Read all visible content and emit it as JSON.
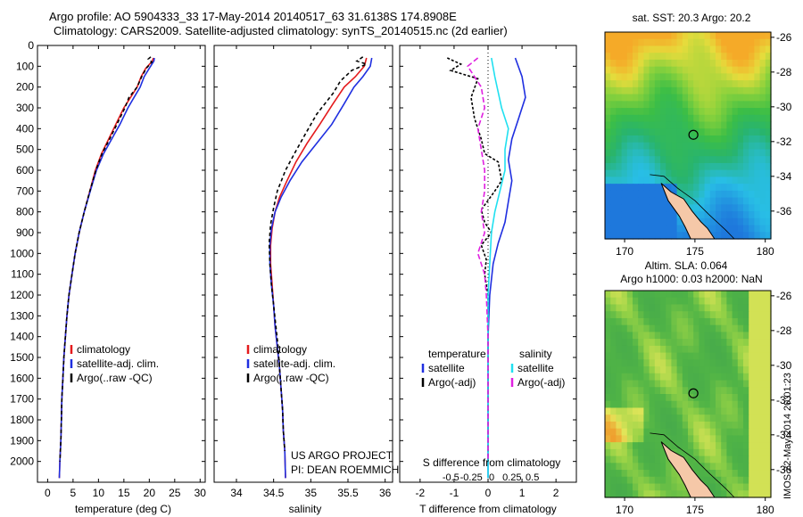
{
  "header": {
    "line1": "Argo profile: AO 5904333_33 17-May-2014 20140517_63 31.6138S 174.8908E",
    "line2": "Climatology: CARS2009. Satellite-adjusted climatology: synTS_20140515.nc (2d earlier)"
  },
  "side_label": "IMOS 22-May-2014 20:01:23",
  "colors": {
    "red": "#e41a1c",
    "blue": "#1f2fe0",
    "black": "#000000",
    "magenta": "#e020e0",
    "cyan": "#20e0f0"
  },
  "chart_data": [
    {
      "type": "line",
      "panel": "temperature",
      "xlabel": "temperature (deg C)",
      "xlim": [
        -2,
        31
      ],
      "xticks": [
        0,
        5,
        10,
        15,
        20,
        25,
        30
      ],
      "ylabel": "",
      "ylim": [
        2100,
        0
      ],
      "yticks": [
        0,
        100,
        200,
        300,
        400,
        500,
        600,
        700,
        800,
        900,
        1000,
        1100,
        1200,
        1300,
        1400,
        1500,
        1600,
        1700,
        1800,
        1900,
        2000
      ],
      "legend": [
        "climatology",
        "satellite-adj. clim.",
        "Argo(..raw -QC)"
      ],
      "legend_position": "lower-center",
      "series": [
        {
          "name": "climatology",
          "color": "red",
          "dash": "",
          "points": [
            [
              20.8,
              60
            ],
            [
              20.6,
              75
            ],
            [
              19.3,
              110
            ],
            [
              18.4,
              150
            ],
            [
              17.6,
              200
            ],
            [
              16.3,
              250
            ],
            [
              15.0,
              300
            ],
            [
              13.4,
              380
            ],
            [
              12.0,
              450
            ],
            [
              10.6,
              520
            ],
            [
              9.4,
              600
            ],
            [
              8.3,
              700
            ],
            [
              7.2,
              800
            ],
            [
              6.2,
              900
            ],
            [
              5.4,
              1000
            ],
            [
              4.8,
              1100
            ],
            [
              4.2,
              1200
            ],
            [
              3.8,
              1300
            ],
            [
              3.5,
              1400
            ],
            [
              3.2,
              1500
            ],
            [
              3.0,
              1600
            ],
            [
              2.8,
              1700
            ],
            [
              2.7,
              1800
            ],
            [
              2.6,
              1900
            ],
            [
              2.4,
              2000
            ],
            [
              2.3,
              2080
            ]
          ]
        },
        {
          "name": "satellite-adj. clim.",
          "color": "blue",
          "dash": "",
          "points": [
            [
              21.0,
              60
            ],
            [
              20.9,
              75
            ],
            [
              20.0,
              110
            ],
            [
              19.0,
              150
            ],
            [
              18.2,
              200
            ],
            [
              17.0,
              250
            ],
            [
              15.8,
              300
            ],
            [
              14.2,
              380
            ],
            [
              12.6,
              450
            ],
            [
              11.0,
              520
            ],
            [
              9.6,
              600
            ],
            [
              8.4,
              700
            ],
            [
              7.2,
              800
            ],
            [
              6.2,
              900
            ],
            [
              5.4,
              1000
            ],
            [
              4.8,
              1100
            ],
            [
              4.2,
              1200
            ],
            [
              3.8,
              1300
            ],
            [
              3.5,
              1400
            ],
            [
              3.2,
              1500
            ],
            [
              3.0,
              1600
            ],
            [
              2.8,
              1700
            ],
            [
              2.7,
              1800
            ],
            [
              2.6,
              1900
            ],
            [
              2.4,
              2000
            ],
            [
              2.3,
              2080
            ]
          ]
        },
        {
          "name": "Argo(..raw -QC)",
          "color": "black",
          "dash": "4,3",
          "points": [
            [
              20.3,
              55
            ],
            [
              19.8,
              65
            ],
            [
              20.5,
              80
            ],
            [
              19.4,
              110
            ],
            [
              18.5,
              150
            ],
            [
              17.6,
              200
            ],
            [
              16.0,
              250
            ],
            [
              15.2,
              300
            ],
            [
              13.6,
              380
            ],
            [
              12.2,
              450
            ],
            [
              10.7,
              520
            ],
            [
              9.5,
              600
            ],
            [
              8.3,
              700
            ],
            [
              7.2,
              800
            ],
            [
              6.2,
              900
            ],
            [
              5.4,
              1000
            ],
            [
              4.8,
              1100
            ],
            [
              4.2,
              1200
            ],
            [
              3.8,
              1300
            ],
            [
              3.5,
              1400
            ],
            [
              3.2,
              1500
            ],
            [
              3.0,
              1600
            ],
            [
              2.8,
              1700
            ],
            [
              2.7,
              1800
            ],
            [
              2.6,
              1900
            ],
            [
              2.4,
              2000
            ]
          ]
        }
      ]
    },
    {
      "type": "line",
      "panel": "salinity",
      "xlabel": "salinity",
      "xlim": [
        33.7,
        36.1
      ],
      "xticks": [
        34,
        34.5,
        35,
        35.5,
        36
      ],
      "ylim": [
        2100,
        0
      ],
      "legend": [
        "climatology",
        "satellite-adj. clim.",
        "Argo(..raw -QC)"
      ],
      "legend_position": "lower-center",
      "annotations": [
        "US ARGO PROJECT",
        "PI: DEAN ROEMMICH"
      ],
      "series": [
        {
          "name": "climatology",
          "color": "red",
          "dash": "",
          "points": [
            [
              35.75,
              60
            ],
            [
              35.72,
              100
            ],
            [
              35.6,
              150
            ],
            [
              35.45,
              200
            ],
            [
              35.3,
              280
            ],
            [
              35.12,
              380
            ],
            [
              34.95,
              470
            ],
            [
              34.8,
              560
            ],
            [
              34.68,
              650
            ],
            [
              34.58,
              730
            ],
            [
              34.52,
              800
            ],
            [
              34.48,
              880
            ],
            [
              34.46,
              960
            ],
            [
              34.46,
              1050
            ],
            [
              34.48,
              1150
            ],
            [
              34.5,
              1250
            ],
            [
              34.52,
              1350
            ],
            [
              34.55,
              1450
            ],
            [
              34.58,
              1550
            ],
            [
              34.6,
              1650
            ],
            [
              34.62,
              1750
            ],
            [
              34.63,
              1850
            ],
            [
              34.65,
              1950
            ],
            [
              34.66,
              2080
            ]
          ]
        },
        {
          "name": "satellite-adj. clim.",
          "color": "blue",
          "dash": "",
          "points": [
            [
              35.82,
              60
            ],
            [
              35.8,
              100
            ],
            [
              35.7,
              150
            ],
            [
              35.58,
              200
            ],
            [
              35.45,
              280
            ],
            [
              35.28,
              380
            ],
            [
              35.08,
              470
            ],
            [
              34.88,
              560
            ],
            [
              34.72,
              650
            ],
            [
              34.6,
              730
            ],
            [
              34.52,
              800
            ],
            [
              34.47,
              880
            ],
            [
              34.45,
              960
            ],
            [
              34.45,
              1050
            ],
            [
              34.47,
              1150
            ],
            [
              34.5,
              1250
            ],
            [
              34.52,
              1350
            ],
            [
              34.55,
              1450
            ],
            [
              34.58,
              1550
            ],
            [
              34.6,
              1650
            ],
            [
              34.62,
              1750
            ],
            [
              34.63,
              1850
            ],
            [
              34.65,
              1950
            ],
            [
              34.66,
              2080
            ]
          ]
        },
        {
          "name": "Argo(..raw -QC)",
          "color": "black",
          "dash": "4,3",
          "points": [
            [
              35.7,
              55
            ],
            [
              35.62,
              75
            ],
            [
              35.75,
              90
            ],
            [
              35.55,
              120
            ],
            [
              35.4,
              170
            ],
            [
              35.3,
              230
            ],
            [
              35.08,
              330
            ],
            [
              34.92,
              430
            ],
            [
              34.78,
              520
            ],
            [
              34.66,
              600
            ],
            [
              34.55,
              700
            ],
            [
              34.5,
              780
            ],
            [
              34.46,
              860
            ],
            [
              34.44,
              950
            ],
            [
              34.45,
              1050
            ],
            [
              34.47,
              1150
            ],
            [
              34.5,
              1250
            ],
            [
              34.53,
              1350
            ],
            [
              34.56,
              1450
            ],
            [
              34.58,
              1550
            ],
            [
              34.6,
              1650
            ],
            [
              34.62,
              1750
            ],
            [
              34.63,
              1850
            ],
            [
              34.65,
              1950
            ]
          ]
        }
      ]
    },
    {
      "type": "line",
      "panel": "differences",
      "xlabel": "T difference from climatology",
      "xlabel_top": "S difference from climatology",
      "xlim": [
        -2.6,
        2.6
      ],
      "xticks": [
        -2,
        -1,
        0,
        1,
        2
      ],
      "xtick_labels": [
        "-2",
        "-1",
        "0",
        "1",
        "2"
      ],
      "xticks_top_labels": [
        "-0.5",
        "-0.25",
        "0",
        "0.25",
        "0.5"
      ],
      "ylim": [
        2100,
        0
      ],
      "legend_temperature_title": "temperature",
      "legend_salinity_title": "salinity",
      "legend": [
        "satellite",
        "Argo(-adj)",
        "satellite",
        "Argo(-adj)"
      ],
      "series": [
        {
          "name": "satellite",
          "color": "blue",
          "dash": "",
          "points": [
            [
              0.8,
              60
            ],
            [
              1.0,
              150
            ],
            [
              1.1,
              250
            ],
            [
              0.9,
              350
            ],
            [
              0.7,
              450
            ],
            [
              0.6,
              550
            ],
            [
              0.7,
              650
            ],
            [
              0.6,
              750
            ],
            [
              0.5,
              850
            ],
            [
              0.3,
              950
            ],
            [
              0.15,
              1050
            ],
            [
              0.05,
              1200
            ],
            [
              0,
              1400
            ],
            [
              0,
              2080
            ]
          ]
        },
        {
          "name": "Argo(-adj)",
          "color": "black",
          "dash": "3,2",
          "points": [
            [
              -1.2,
              60
            ],
            [
              -0.8,
              90
            ],
            [
              -1.1,
              120
            ],
            [
              -0.3,
              160
            ],
            [
              -0.5,
              250
            ],
            [
              -0.4,
              350
            ],
            [
              -0.2,
              450
            ],
            [
              -0.1,
              520
            ],
            [
              0.3,
              560
            ],
            [
              0.4,
              650
            ],
            [
              0.2,
              700
            ],
            [
              -0.2,
              790
            ],
            [
              -0.1,
              850
            ],
            [
              0.1,
              900
            ],
            [
              -0.2,
              960
            ],
            [
              -0.05,
              1030
            ],
            [
              -0.1,
              1100
            ],
            [
              0,
              1200
            ],
            [
              0,
              2000
            ]
          ]
        },
        {
          "name": "satellite",
          "color": "cyan",
          "dash": "",
          "points": [
            [
              0.1,
              60
            ],
            [
              0.2,
              150
            ],
            [
              0.4,
              300
            ],
            [
              0.6,
              400
            ],
            [
              0.5,
              500
            ],
            [
              0.5,
              600
            ],
            [
              0.35,
              700
            ],
            [
              0.2,
              800
            ],
            [
              0.1,
              900
            ],
            [
              0.05,
              1050
            ],
            [
              0,
              1200
            ],
            [
              0,
              2080
            ]
          ]
        },
        {
          "name": "Argo(-adj)",
          "color": "magenta",
          "dash": "6,3",
          "points": [
            [
              -0.3,
              60
            ],
            [
              -0.6,
              100
            ],
            [
              -0.2,
              200
            ],
            [
              -0.1,
              300
            ],
            [
              -0.3,
              400
            ],
            [
              -0.2,
              500
            ],
            [
              -0.1,
              600
            ],
            [
              -0.1,
              700
            ],
            [
              -0.2,
              800
            ],
            [
              -0.1,
              900
            ],
            [
              -0.3,
              1000
            ],
            [
              -0.1,
              1100
            ],
            [
              -0.05,
              1200
            ],
            [
              0,
              1400
            ],
            [
              0,
              2000
            ]
          ]
        }
      ]
    },
    {
      "type": "heatmap",
      "panel": "sst-map",
      "title": "sat. SST: 20.3 Argo: 20.2",
      "xticks": [
        170,
        175,
        180
      ],
      "yticks": [
        -26,
        -28,
        -30,
        -32,
        -34,
        -36
      ],
      "xlim": [
        168.6,
        180.4
      ],
      "ylim": [
        -37.6,
        -25.7
      ],
      "argo_position": [
        174.89,
        -31.61
      ]
    },
    {
      "type": "heatmap",
      "panel": "sla-map",
      "title_line1": "Altim. SLA: 0.064",
      "title_line2": "Argo h1000: 0.03 h2000: NaN",
      "xticks": [
        170,
        175,
        180
      ],
      "yticks": [
        -26,
        -28,
        -30,
        -32,
        -34,
        -36
      ],
      "xlim": [
        168.6,
        180.4
      ],
      "ylim": [
        -37.6,
        -25.7
      ],
      "argo_position": [
        174.89,
        -31.61
      ]
    }
  ]
}
